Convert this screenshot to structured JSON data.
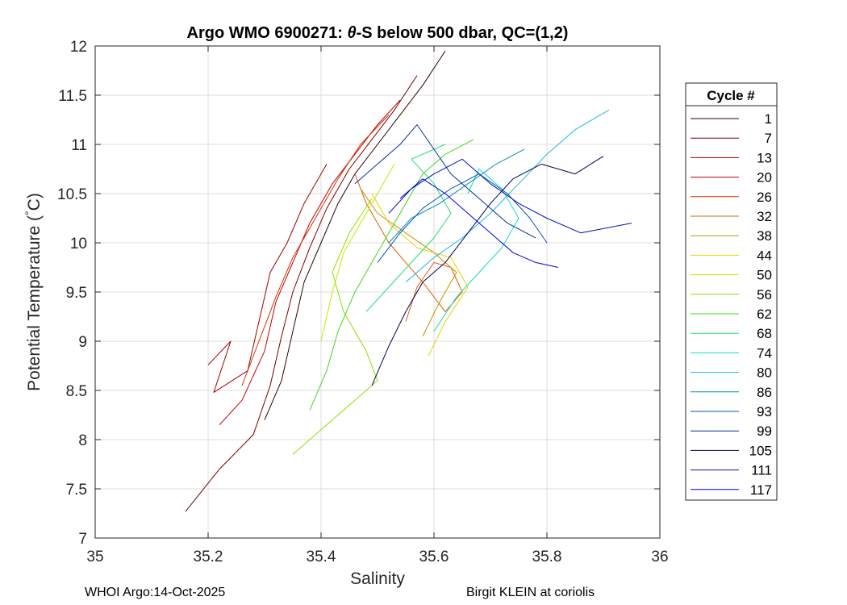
{
  "chart_data": {
    "type": "line",
    "title_prefix": "Argo WMO 6900271: ",
    "title_theta": "θ",
    "title_suffix": "-S below 500 dbar,  QC=(1,2)",
    "xlabel": "Salinity",
    "ylabel_main": "Potential Temperature (",
    "ylabel_deg": "°",
    "ylabel_end": "C)",
    "xlim": [
      35,
      36
    ],
    "ylim": [
      7,
      12
    ],
    "xticks": [
      "35",
      "35.2",
      "35.4",
      "35.6",
      "35.8",
      "36"
    ],
    "yticks": [
      "7",
      "7.5",
      "8",
      "8.5",
      "9",
      "9.5",
      "10",
      "10.5",
      "11",
      "11.5",
      "12"
    ],
    "grid": true,
    "legend_title": "Cycle #",
    "legend_position": "outside-right",
    "series": [
      {
        "name": "1",
        "color": "#2a0000",
        "points": [
          [
            35.3,
            8.2
          ],
          [
            35.33,
            8.6
          ],
          [
            35.35,
            9.1
          ],
          [
            35.37,
            9.6
          ],
          [
            35.4,
            10.0
          ],
          [
            35.43,
            10.4
          ],
          [
            35.46,
            10.7
          ],
          [
            35.5,
            11.0
          ],
          [
            35.54,
            11.3
          ],
          [
            35.58,
            11.6
          ],
          [
            35.62,
            11.95
          ]
        ]
      },
      {
        "name": "7",
        "color": "#7a0000",
        "points": [
          [
            35.16,
            7.27
          ],
          [
            35.22,
            7.7
          ],
          [
            35.28,
            8.05
          ],
          [
            35.31,
            8.55
          ],
          [
            35.33,
            9.05
          ],
          [
            35.35,
            9.5
          ],
          [
            35.38,
            9.95
          ],
          [
            35.41,
            10.35
          ],
          [
            35.45,
            10.75
          ],
          [
            35.49,
            11.05
          ],
          [
            35.53,
            11.35
          ],
          [
            35.57,
            11.7
          ]
        ]
      },
      {
        "name": "13",
        "color": "#a00000",
        "points": [
          [
            35.2,
            8.76
          ],
          [
            35.24,
            9.0
          ],
          [
            35.21,
            8.48
          ],
          [
            35.27,
            8.7
          ],
          [
            35.29,
            9.2
          ],
          [
            35.31,
            9.7
          ],
          [
            35.34,
            10.0
          ],
          [
            35.37,
            10.4
          ],
          [
            35.41,
            10.8
          ]
        ]
      },
      {
        "name": "20",
        "color": "#c00000",
        "points": [
          [
            35.22,
            8.15
          ],
          [
            35.26,
            8.4
          ],
          [
            35.3,
            8.9
          ],
          [
            35.32,
            9.4
          ],
          [
            35.35,
            9.8
          ],
          [
            35.38,
            10.2
          ],
          [
            35.42,
            10.6
          ],
          [
            35.46,
            10.9
          ],
          [
            35.5,
            11.2
          ],
          [
            35.54,
            11.45
          ]
        ]
      },
      {
        "name": "26",
        "color": "#d83000",
        "points": [
          [
            35.26,
            8.55
          ],
          [
            35.29,
            9.0
          ],
          [
            35.32,
            9.45
          ],
          [
            35.35,
            9.85
          ],
          [
            35.39,
            10.25
          ],
          [
            35.43,
            10.65
          ],
          [
            35.47,
            11.0
          ],
          [
            35.52,
            11.3
          ]
        ]
      },
      {
        "name": "32",
        "color": "#e06000",
        "points": [
          [
            35.55,
            9.2
          ],
          [
            35.57,
            9.55
          ],
          [
            35.6,
            9.8
          ],
          [
            35.63,
            9.75
          ],
          [
            35.65,
            9.5
          ],
          [
            35.62,
            9.3
          ],
          [
            35.58,
            9.6
          ],
          [
            35.52,
            10.0
          ],
          [
            35.48,
            10.4
          ],
          [
            35.46,
            10.7
          ]
        ]
      },
      {
        "name": "38",
        "color": "#c89000",
        "points": [
          [
            35.58,
            9.05
          ],
          [
            35.61,
            9.4
          ],
          [
            35.64,
            9.7
          ],
          [
            35.6,
            9.9
          ],
          [
            35.55,
            10.1
          ],
          [
            35.5,
            10.3
          ],
          [
            35.47,
            10.55
          ]
        ]
      },
      {
        "name": "44",
        "color": "#e8d000",
        "points": [
          [
            35.59,
            8.85
          ],
          [
            35.62,
            9.2
          ],
          [
            35.66,
            9.55
          ],
          [
            35.63,
            9.85
          ],
          [
            35.57,
            9.95
          ],
          [
            35.52,
            10.2
          ],
          [
            35.49,
            10.5
          ]
        ]
      },
      {
        "name": "50",
        "color": "#c8e800",
        "points": [
          [
            35.4,
            9.0
          ],
          [
            35.42,
            9.5
          ],
          [
            35.44,
            9.9
          ],
          [
            35.47,
            10.2
          ],
          [
            35.5,
            10.5
          ],
          [
            35.53,
            10.8
          ]
        ]
      },
      {
        "name": "56",
        "color": "#90e000",
        "points": [
          [
            35.35,
            7.85
          ],
          [
            35.4,
            8.1
          ],
          [
            35.45,
            8.35
          ],
          [
            35.5,
            8.6
          ],
          [
            35.48,
            8.9
          ],
          [
            35.44,
            9.3
          ],
          [
            35.42,
            9.7
          ],
          [
            35.45,
            10.1
          ],
          [
            35.49,
            10.45
          ]
        ]
      },
      {
        "name": "62",
        "color": "#40d820",
        "points": [
          [
            35.38,
            8.3
          ],
          [
            35.41,
            8.7
          ],
          [
            35.43,
            9.1
          ],
          [
            35.46,
            9.5
          ],
          [
            35.49,
            9.8
          ],
          [
            35.52,
            10.1
          ],
          [
            35.55,
            10.4
          ],
          [
            35.58,
            10.7
          ],
          [
            35.62,
            10.9
          ],
          [
            35.67,
            11.05
          ]
        ]
      },
      {
        "name": "68",
        "color": "#20e070",
        "points": [
          [
            35.48,
            9.3
          ],
          [
            35.52,
            9.55
          ],
          [
            35.56,
            9.8
          ],
          [
            35.6,
            10.05
          ],
          [
            35.63,
            10.3
          ],
          [
            35.6,
            10.6
          ],
          [
            35.56,
            10.85
          ],
          [
            35.62,
            11.0
          ]
        ]
      },
      {
        "name": "74",
        "color": "#10e0c0",
        "points": [
          [
            35.6,
            9.1
          ],
          [
            35.64,
            9.45
          ],
          [
            35.68,
            9.7
          ],
          [
            35.72,
            9.95
          ],
          [
            35.75,
            10.25
          ],
          [
            35.72,
            10.55
          ],
          [
            35.68,
            10.75
          ],
          [
            35.66,
            10.5
          ]
        ]
      },
      {
        "name": "80",
        "color": "#20b8e0",
        "points": [
          [
            35.55,
            9.6
          ],
          [
            35.6,
            9.85
          ],
          [
            35.65,
            10.05
          ],
          [
            35.7,
            10.3
          ],
          [
            35.75,
            10.6
          ],
          [
            35.8,
            10.9
          ],
          [
            35.85,
            11.15
          ],
          [
            35.91,
            11.35
          ]
        ]
      },
      {
        "name": "86",
        "color": "#0090b0",
        "points": [
          [
            35.52,
            10.0
          ],
          [
            35.56,
            10.25
          ],
          [
            35.61,
            10.4
          ],
          [
            35.66,
            10.6
          ],
          [
            35.71,
            10.8
          ],
          [
            35.76,
            10.95
          ]
        ]
      },
      {
        "name": "93",
        "color": "#0050c8",
        "points": [
          [
            35.5,
            9.8
          ],
          [
            35.54,
            10.1
          ],
          [
            35.58,
            10.35
          ],
          [
            35.63,
            10.55
          ],
          [
            35.68,
            10.7
          ],
          [
            35.73,
            10.5
          ],
          [
            35.77,
            10.25
          ],
          [
            35.8,
            10.0
          ]
        ]
      },
      {
        "name": "99",
        "color": "#0030a0",
        "points": [
          [
            35.46,
            10.6
          ],
          [
            35.5,
            10.8
          ],
          [
            35.54,
            11.0
          ],
          [
            35.57,
            11.2
          ],
          [
            35.6,
            10.95
          ],
          [
            35.63,
            10.7
          ],
          [
            35.68,
            10.45
          ],
          [
            35.73,
            10.2
          ],
          [
            35.78,
            10.05
          ]
        ]
      },
      {
        "name": "105",
        "color": "#000850",
        "points": [
          [
            35.49,
            8.55
          ],
          [
            35.52,
            8.95
          ],
          [
            35.55,
            9.3
          ],
          [
            35.58,
            9.6
          ],
          [
            35.62,
            9.8
          ],
          [
            35.66,
            10.1
          ],
          [
            35.7,
            10.4
          ],
          [
            35.74,
            10.65
          ],
          [
            35.79,
            10.8
          ],
          [
            35.85,
            10.7
          ],
          [
            35.9,
            10.88
          ]
        ]
      },
      {
        "name": "111",
        "color": "#0010c0",
        "points": [
          [
            35.52,
            10.3
          ],
          [
            35.56,
            10.55
          ],
          [
            35.6,
            10.7
          ],
          [
            35.65,
            10.85
          ],
          [
            35.7,
            10.6
          ],
          [
            35.75,
            10.4
          ],
          [
            35.8,
            10.25
          ],
          [
            35.86,
            10.1
          ],
          [
            35.95,
            10.2
          ]
        ]
      },
      {
        "name": "117",
        "color": "#0000e0",
        "points": [
          [
            35.54,
            10.45
          ],
          [
            35.58,
            10.65
          ],
          [
            35.62,
            10.5
          ],
          [
            35.66,
            10.3
          ],
          [
            35.7,
            10.1
          ],
          [
            35.74,
            9.9
          ],
          [
            35.78,
            9.8
          ],
          [
            35.82,
            9.75
          ]
        ]
      }
    ]
  },
  "footer": {
    "left": "WHOI Argo:14-Oct-2025",
    "right": "Birgit KLEIN at coriolis"
  }
}
